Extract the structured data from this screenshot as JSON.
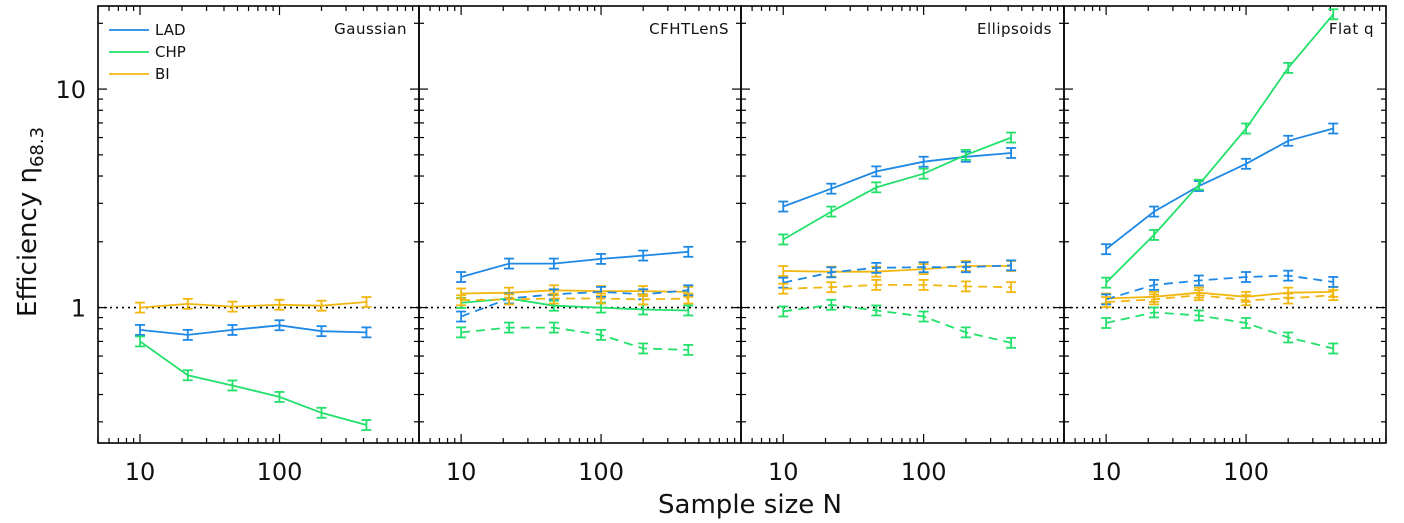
{
  "chart_data": {
    "type": "line",
    "xlabel": "Sample size N",
    "ylabel": "Efficiency η68.3",
    "ylabel_main": "Efficiency η",
    "ylabel_sub": "68.3",
    "x_scale": "log",
    "y_scale": "log",
    "xlim": [
      5,
      1000
    ],
    "ylim": [
      0.24,
      24
    ],
    "x": [
      10,
      22,
      46,
      100,
      200,
      420
    ],
    "x_ticks": [
      {
        "value": 10,
        "label": "10"
      },
      {
        "value": 100,
        "label": "100"
      }
    ],
    "y_ticks": [
      {
        "value": 1,
        "label": "1"
      },
      {
        "value": 10,
        "label": "10"
      }
    ],
    "reference_line": {
      "y": 1,
      "style": "dotted"
    },
    "colors": {
      "LAD": "#1e88e5",
      "CHP": "#22e06a",
      "BI": "#f2b70f"
    },
    "legend": {
      "placement": "top-left",
      "entries": [
        "LAD",
        "CHP",
        "BI"
      ]
    },
    "panels": [
      {
        "title": "Gaussian",
        "series": [
          {
            "name": "LAD",
            "style": "solid",
            "values": [
              0.79,
              0.75,
              0.79,
              0.83,
              0.78,
              0.77
            ]
          },
          {
            "name": "CHP",
            "style": "solid",
            "values": [
              0.7,
              0.49,
              0.44,
              0.39,
              0.33,
              0.29
            ]
          },
          {
            "name": "BI",
            "style": "solid",
            "values": [
              1.0,
              1.04,
              1.01,
              1.03,
              1.02,
              1.06
            ]
          }
        ]
      },
      {
        "title": "CFHTLenS",
        "series": [
          {
            "name": "LAD",
            "style": "solid",
            "values": [
              1.38,
              1.59,
              1.59,
              1.67,
              1.73,
              1.8
            ]
          },
          {
            "name": "CHP",
            "style": "solid",
            "values": [
              1.05,
              1.1,
              1.02,
              1.0,
              0.98,
              0.97
            ]
          },
          {
            "name": "BI",
            "style": "solid",
            "values": [
              1.16,
              1.17,
              1.2,
              1.19,
              1.19,
              1.18
            ]
          },
          {
            "name": "LAD",
            "style": "dashed",
            "values": [
              0.91,
              1.1,
              1.15,
              1.18,
              1.15,
              1.2
            ]
          },
          {
            "name": "CHP",
            "style": "dashed",
            "values": [
              0.77,
              0.81,
              0.81,
              0.75,
              0.65,
              0.64
            ]
          },
          {
            "name": "BI",
            "style": "dashed",
            "values": [
              1.08,
              1.09,
              1.1,
              1.1,
              1.09,
              1.1
            ]
          }
        ]
      },
      {
        "title": "Ellipsoids",
        "series": [
          {
            "name": "LAD",
            "style": "solid",
            "values": [
              2.9,
              3.5,
              4.2,
              4.65,
              4.9,
              5.1
            ]
          },
          {
            "name": "CHP",
            "style": "solid",
            "values": [
              2.05,
              2.75,
              3.55,
              4.1,
              5.0,
              6.0
            ]
          },
          {
            "name": "BI",
            "style": "solid",
            "values": [
              1.47,
              1.46,
              1.46,
              1.5,
              1.55,
              1.55
            ]
          },
          {
            "name": "LAD",
            "style": "dashed",
            "values": [
              1.3,
              1.45,
              1.52,
              1.53,
              1.53,
              1.56
            ]
          },
          {
            "name": "CHP",
            "style": "dashed",
            "values": [
              0.96,
              1.03,
              0.97,
              0.91,
              0.77,
              0.69
            ]
          },
          {
            "name": "BI",
            "style": "dashed",
            "values": [
              1.22,
              1.24,
              1.27,
              1.27,
              1.25,
              1.24
            ]
          }
        ]
      },
      {
        "title": "Flat q",
        "series": [
          {
            "name": "LAD",
            "style": "solid",
            "values": [
              1.85,
              2.75,
              3.6,
              4.55,
              5.8,
              6.6
            ]
          },
          {
            "name": "CHP",
            "style": "solid",
            "values": [
              1.3,
              2.15,
              3.65,
              6.6,
              12.5,
              22.0
            ]
          },
          {
            "name": "BI",
            "style": "solid",
            "values": [
              1.1,
              1.12,
              1.17,
              1.12,
              1.17,
              1.18
            ]
          },
          {
            "name": "LAD",
            "style": "dashed",
            "values": [
              1.09,
              1.27,
              1.33,
              1.38,
              1.4,
              1.31
            ]
          },
          {
            "name": "CHP",
            "style": "dashed",
            "values": [
              0.85,
              0.95,
              0.92,
              0.85,
              0.73,
              0.65
            ]
          },
          {
            "name": "BI",
            "style": "dashed",
            "values": [
              1.06,
              1.09,
              1.14,
              1.08,
              1.1,
              1.14
            ]
          }
        ]
      }
    ]
  }
}
